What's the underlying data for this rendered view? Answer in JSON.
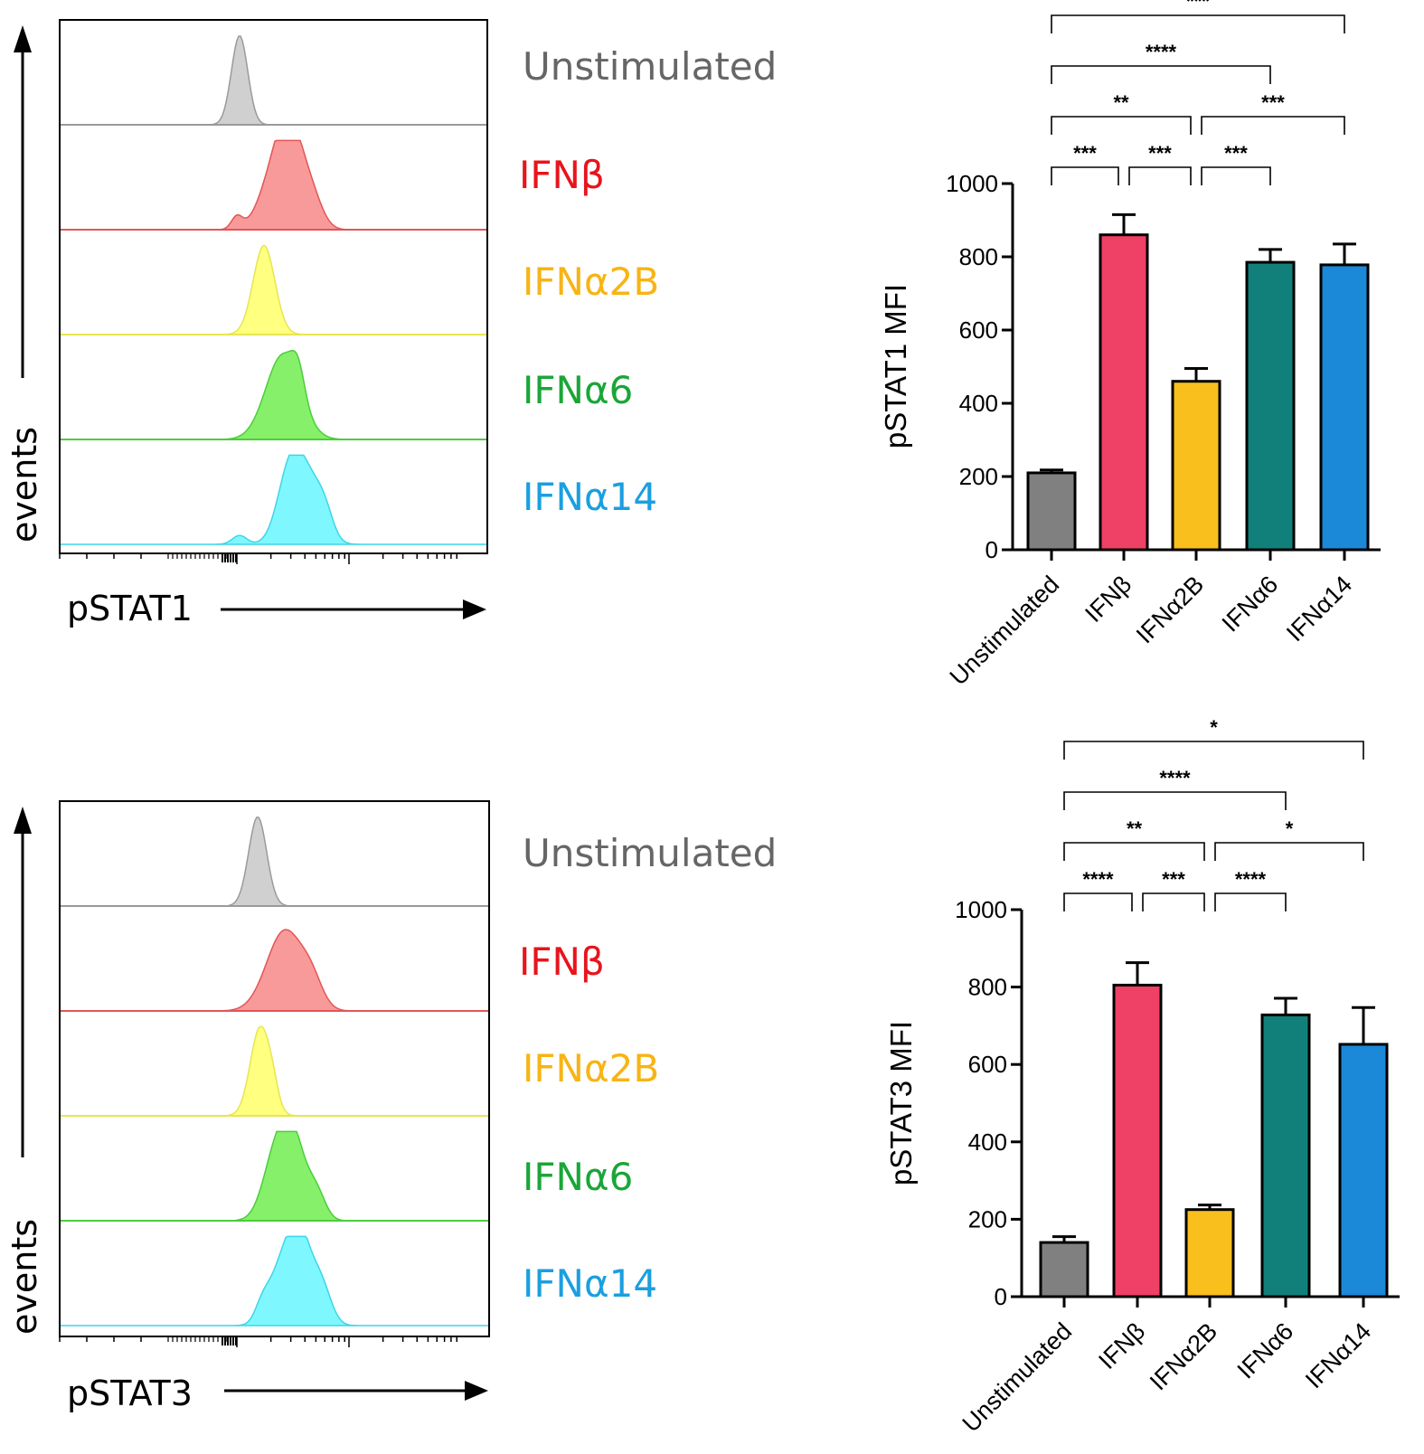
{
  "histograms": [
    {
      "x_label": "pSTAT1",
      "y_label": "events",
      "tracks": [
        {
          "label": "Unstimulated",
          "text_color": "#666666",
          "fill": "#d0d0d0",
          "line": "#9a9a9a"
        },
        {
          "label": "IFNβ",
          "text_color": "#e8141c",
          "fill": "#f99a9a",
          "line": "#e35555"
        },
        {
          "label": "IFNα2B",
          "text_color": "#f7b414",
          "fill": "#ffff80",
          "line": "#e6e650"
        },
        {
          "label": "IFNα6",
          "text_color": "#1aa637",
          "fill": "#86f06a",
          "line": "#4ccd3c"
        },
        {
          "label": "IFNα14",
          "text_color": "#1a9fe0",
          "fill": "#7ff7ff",
          "line": "#3cd6e6"
        }
      ]
    },
    {
      "x_label": "pSTAT3",
      "y_label": "events",
      "tracks": [
        {
          "label": "Unstimulated",
          "text_color": "#666666",
          "fill": "#d0d0d0",
          "line": "#9a9a9a"
        },
        {
          "label": "IFNβ",
          "text_color": "#e8141c",
          "fill": "#f99a9a",
          "line": "#e35555"
        },
        {
          "label": "IFNα2B",
          "text_color": "#f7b414",
          "fill": "#ffff80",
          "line": "#e6e650"
        },
        {
          "label": "IFNα6",
          "text_color": "#1aa637",
          "fill": "#86f06a",
          "line": "#4ccd3c"
        },
        {
          "label": "IFNα14",
          "text_color": "#1a9fe0",
          "fill": "#7ff7ff",
          "line": "#3cd6e6"
        }
      ]
    }
  ],
  "chart_data": [
    {
      "type": "bar",
      "title": "",
      "xlabel": "",
      "ylabel": "pSTAT1 MFI",
      "ylim": [
        0,
        1000
      ],
      "yticks": [
        "0",
        "200",
        "400",
        "600",
        "800",
        "1000"
      ],
      "categories": [
        "Unstimulated",
        "IFNβ",
        "IFNα2B",
        "IFNα6",
        "IFNα14"
      ],
      "values": [
        210,
        860,
        460,
        785,
        778
      ],
      "errors": [
        8,
        55,
        35,
        35,
        57
      ],
      "colors": [
        "#808080",
        "#ef4066",
        "#f9bf1d",
        "#12807a",
        "#1b88d8"
      ],
      "significance": [
        {
          "from": 0,
          "to": 1,
          "level": 1,
          "label": "***"
        },
        {
          "from": 1,
          "to": 2,
          "level": 1,
          "label": "***"
        },
        {
          "from": 2,
          "to": 3,
          "level": 1,
          "label": "***"
        },
        {
          "from": 0,
          "to": 2,
          "level": 2,
          "label": "**"
        },
        {
          "from": 2,
          "to": 4,
          "level": 2,
          "label": "***"
        },
        {
          "from": 0,
          "to": 3,
          "level": 3,
          "label": "****"
        },
        {
          "from": 0,
          "to": 4,
          "level": 4,
          "label": "***"
        }
      ]
    },
    {
      "type": "bar",
      "title": "",
      "xlabel": "",
      "ylabel": "pSTAT3 MFI",
      "ylim": [
        0,
        1000
      ],
      "yticks": [
        "0",
        "200",
        "400",
        "600",
        "800",
        "1000"
      ],
      "categories": [
        "Unstimulated",
        "IFNβ",
        "IFNα2B",
        "IFNα6",
        "IFNα14"
      ],
      "values": [
        140,
        805,
        225,
        728,
        652
      ],
      "errors": [
        15,
        58,
        12,
        43,
        95
      ],
      "colors": [
        "#808080",
        "#ef4066",
        "#f9bf1d",
        "#12807a",
        "#1b88d8"
      ],
      "significance": [
        {
          "from": 0,
          "to": 1,
          "level": 1,
          "label": "****"
        },
        {
          "from": 1,
          "to": 2,
          "level": 1,
          "label": "***"
        },
        {
          "from": 2,
          "to": 3,
          "level": 1,
          "label": "****"
        },
        {
          "from": 0,
          "to": 2,
          "level": 2,
          "label": "**"
        },
        {
          "from": 2,
          "to": 4,
          "level": 2,
          "label": "*"
        },
        {
          "from": 0,
          "to": 3,
          "level": 3,
          "label": "****"
        },
        {
          "from": 0,
          "to": 4,
          "level": 4,
          "label": "*"
        }
      ]
    }
  ]
}
